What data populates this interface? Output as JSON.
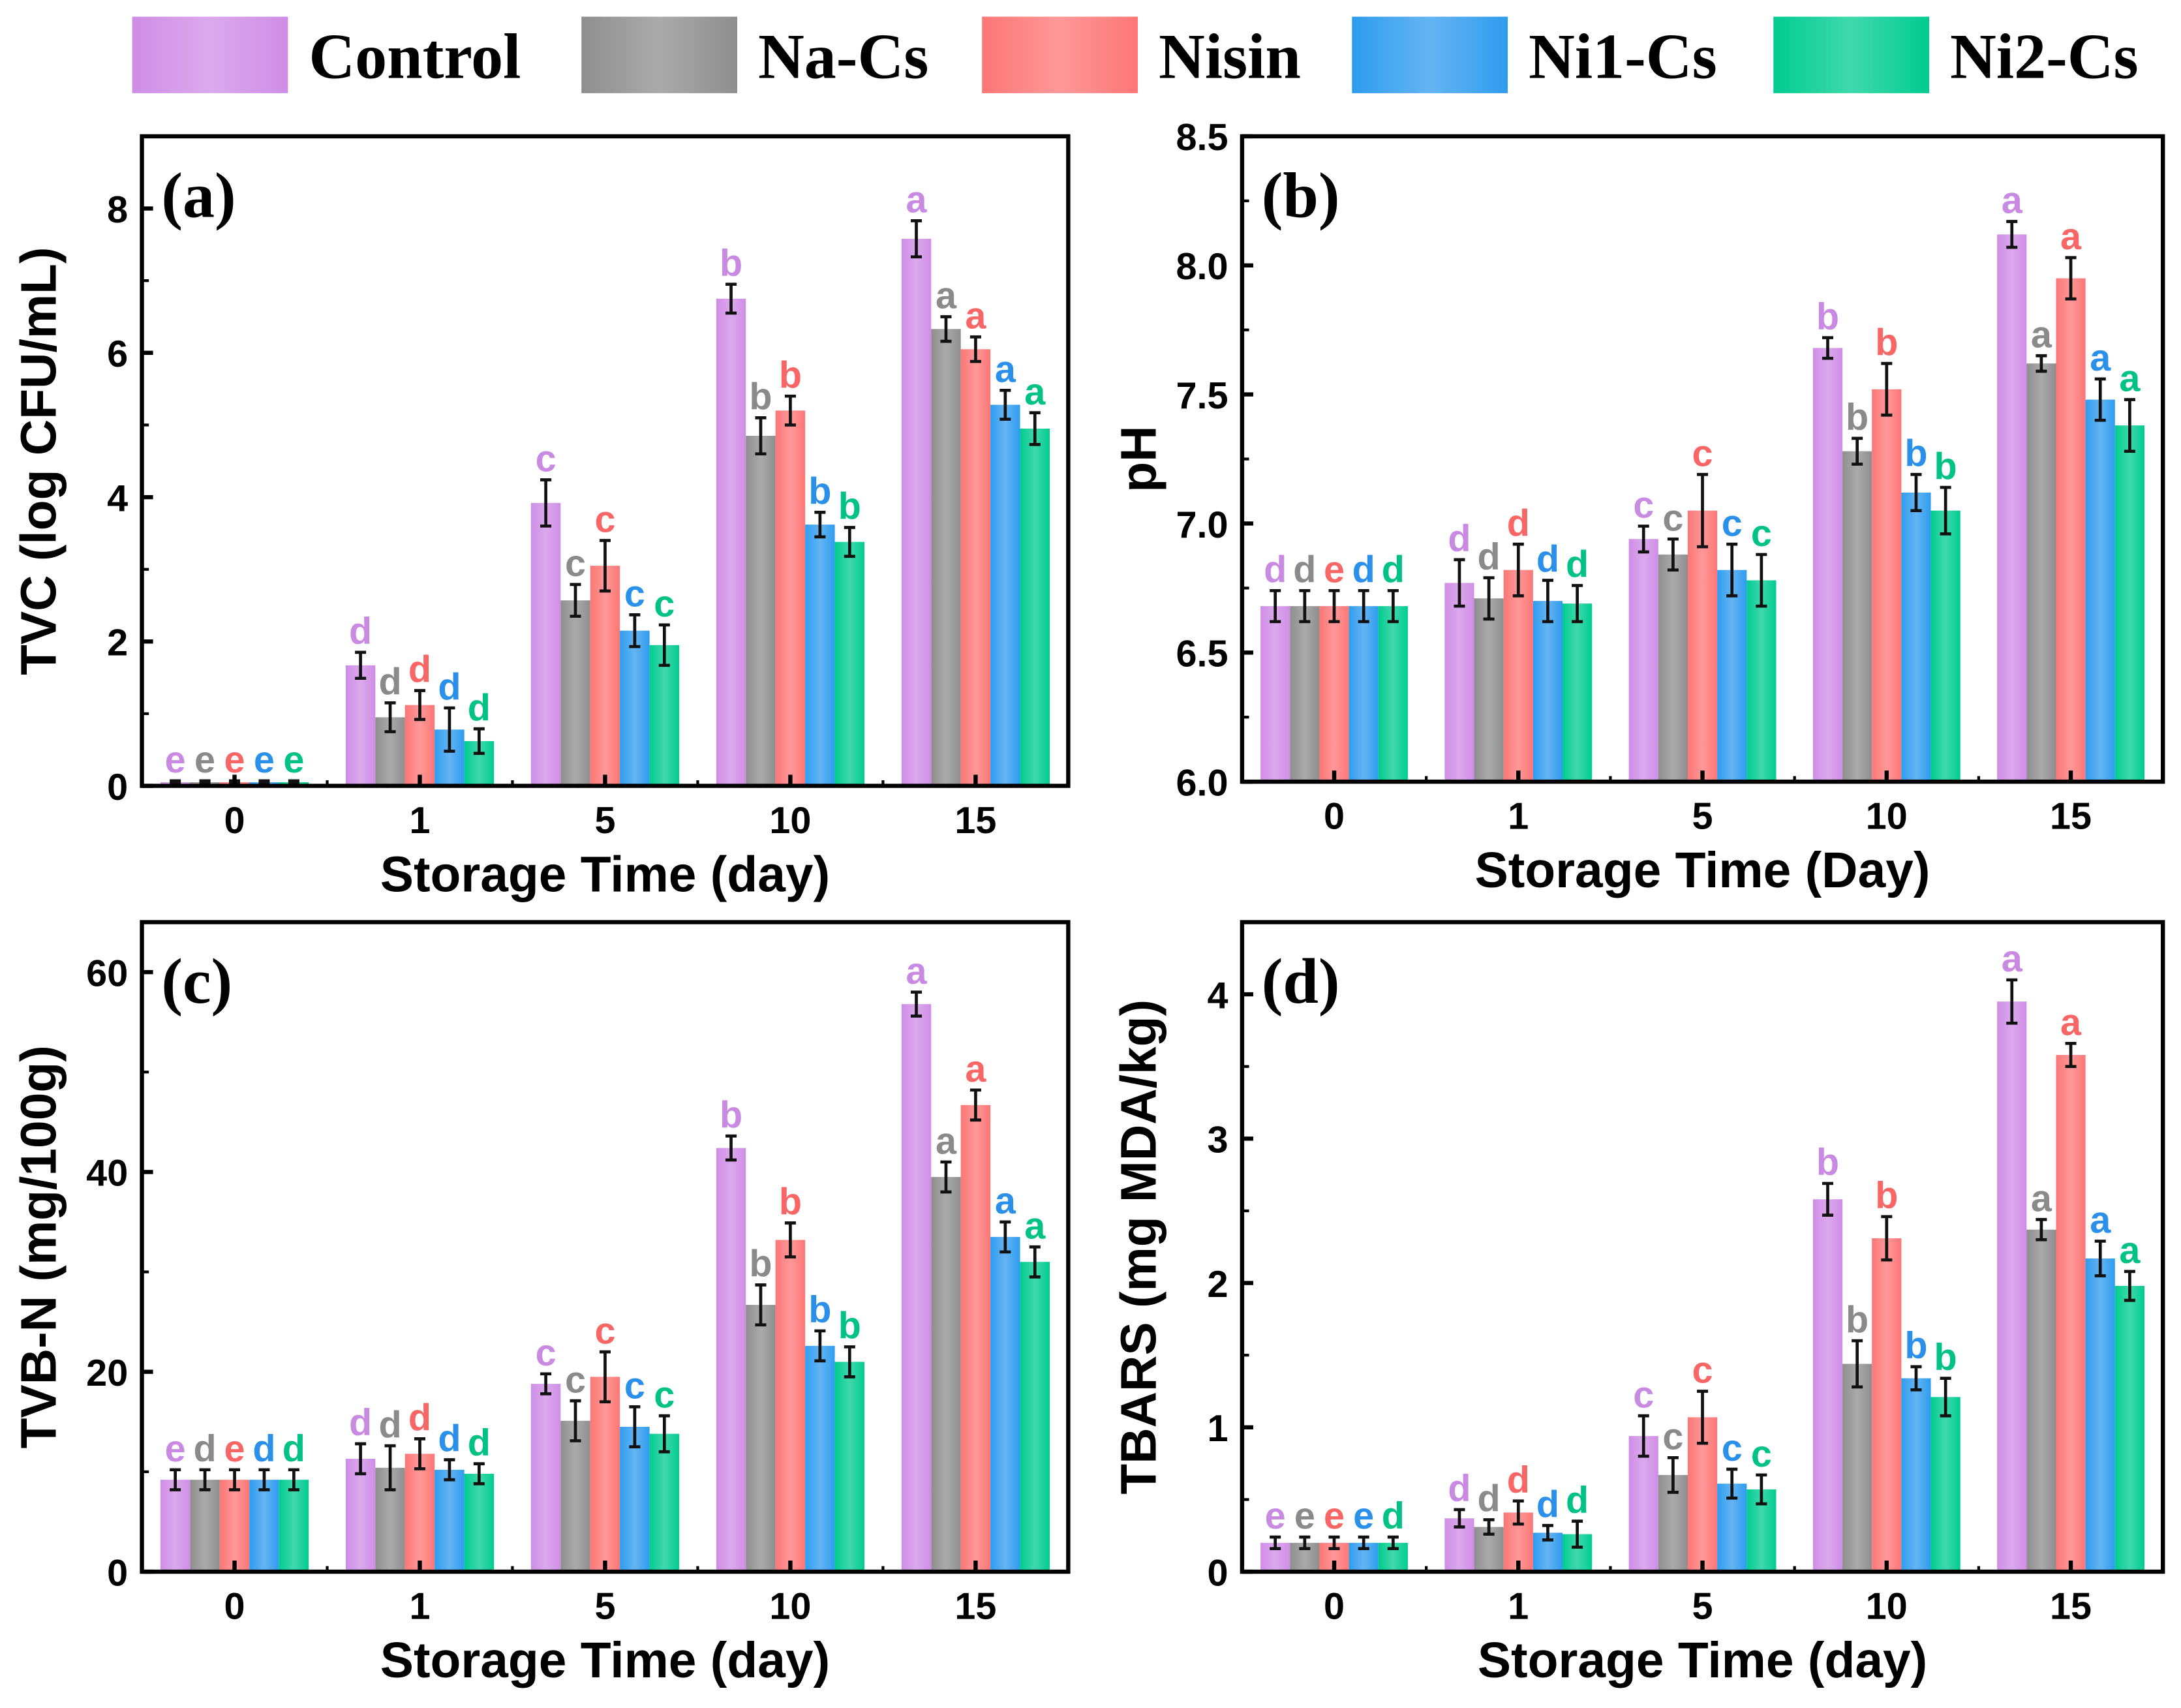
{
  "legend": {
    "position": "top",
    "items": [
      {
        "name": "Control",
        "color": "#cf8de6"
      },
      {
        "name": "Na-Cs",
        "color": "#8e8e8e"
      },
      {
        "name": "Nisin",
        "color": "#fd7676"
      },
      {
        "name": "Ni1-Cs",
        "color": "#2f9cee"
      },
      {
        "name": "Ni2-Cs",
        "color": "#00cc90"
      }
    ]
  },
  "letter_colors": [
    "#c98ae2",
    "#8a8a8a",
    "#f86666",
    "#2a90ea",
    "#00c285"
  ],
  "chart_data": [
    {
      "type": "bar",
      "panel": "(a)",
      "xlabel": "Storage Time (day)",
      "ylabel": "TVC (log CFU/mL)",
      "categories": [
        "0",
        "1",
        "5",
        "10",
        "15"
      ],
      "ylim": [
        0,
        9
      ],
      "yticks": [
        "0",
        "2",
        "4",
        "6",
        "8"
      ],
      "grid": false,
      "series": [
        {
          "name": "Control",
          "values": [
            0.05,
            1.67,
            3.92,
            6.75,
            7.58
          ],
          "errors": [
            0.02,
            0.18,
            0.32,
            0.2,
            0.25
          ],
          "letters": [
            "e",
            "d",
            "c",
            "b",
            "a"
          ]
        },
        {
          "name": "Na-Cs",
          "values": [
            0.05,
            0.95,
            2.57,
            4.85,
            6.33
          ],
          "errors": [
            0.02,
            0.2,
            0.22,
            0.25,
            0.17
          ],
          "letters": [
            "e",
            "d",
            "c",
            "b",
            "a"
          ]
        },
        {
          "name": "Nisin",
          "values": [
            0.05,
            1.12,
            3.05,
            5.2,
            6.05
          ],
          "errors": [
            0.02,
            0.2,
            0.35,
            0.2,
            0.17
          ],
          "letters": [
            "e",
            "d",
            "c",
            "b",
            "a"
          ]
        },
        {
          "name": "Ni1-Cs",
          "values": [
            0.05,
            0.78,
            2.15,
            3.62,
            5.28
          ],
          "errors": [
            0.02,
            0.3,
            0.22,
            0.17,
            0.2
          ],
          "letters": [
            "e",
            "d",
            "c",
            "b",
            "a"
          ]
        },
        {
          "name": "Ni2-Cs",
          "values": [
            0.05,
            0.62,
            1.95,
            3.38,
            4.95
          ],
          "errors": [
            0.02,
            0.17,
            0.28,
            0.2,
            0.22
          ],
          "letters": [
            "e",
            "d",
            "c",
            "b",
            "a"
          ]
        }
      ]
    },
    {
      "type": "bar",
      "panel": "(b)",
      "xlabel": "Storage Time (Day)",
      "ylabel": "pH",
      "categories": [
        "0",
        "1",
        "5",
        "10",
        "15"
      ],
      "ylim": [
        6.0,
        8.5
      ],
      "yticks": [
        "6.0",
        "6.5",
        "7.0",
        "7.5",
        "8.0",
        "8.5"
      ],
      "grid": false,
      "series": [
        {
          "name": "Control",
          "values": [
            6.68,
            6.77,
            6.94,
            7.68,
            8.12
          ],
          "errors": [
            0.06,
            0.09,
            0.05,
            0.04,
            0.05
          ],
          "letters": [
            "d",
            "d",
            "c",
            "b",
            "a"
          ]
        },
        {
          "name": "Na-Cs",
          "values": [
            6.68,
            6.71,
            6.88,
            7.28,
            7.62
          ],
          "errors": [
            0.06,
            0.08,
            0.06,
            0.05,
            0.03
          ],
          "letters": [
            "d",
            "d",
            "c",
            "b",
            "a"
          ]
        },
        {
          "name": "Nisin",
          "values": [
            6.68,
            6.82,
            7.05,
            7.52,
            7.95
          ],
          "errors": [
            0.06,
            0.1,
            0.14,
            0.1,
            0.08
          ],
          "letters": [
            "e",
            "d",
            "c",
            "b",
            "a"
          ]
        },
        {
          "name": "Ni1-Cs",
          "values": [
            6.68,
            6.7,
            6.82,
            7.12,
            7.48
          ],
          "errors": [
            0.06,
            0.08,
            0.1,
            0.07,
            0.08
          ],
          "letters": [
            "d",
            "d",
            "c",
            "b",
            "a"
          ]
        },
        {
          "name": "Ni2-Cs",
          "values": [
            6.68,
            6.69,
            6.78,
            7.05,
            7.38
          ],
          "errors": [
            0.06,
            0.07,
            0.1,
            0.09,
            0.1
          ],
          "letters": [
            "d",
            "d",
            "c",
            "b",
            "a"
          ]
        }
      ]
    },
    {
      "type": "bar",
      "panel": "(c)",
      "xlabel": "Storage Time (day)",
      "ylabel": "TVB-N (mg/100g)",
      "categories": [
        "0",
        "1",
        "5",
        "10",
        "15"
      ],
      "ylim": [
        0,
        65
      ],
      "yticks": [
        "0",
        "20",
        "40",
        "60"
      ],
      "grid": false,
      "series": [
        {
          "name": "Control",
          "values": [
            9.2,
            11.3,
            18.8,
            42.4,
            56.8
          ],
          "errors": [
            1.0,
            1.5,
            1.0,
            1.2,
            1.2
          ],
          "letters": [
            "e",
            "d",
            "c",
            "b",
            "a"
          ]
        },
        {
          "name": "Na-Cs",
          "values": [
            9.2,
            10.4,
            15.1,
            26.7,
            39.5
          ],
          "errors": [
            1.0,
            2.2,
            2.0,
            2.0,
            1.5
          ],
          "letters": [
            "d",
            "d",
            "c",
            "b",
            "a"
          ]
        },
        {
          "name": "Nisin",
          "values": [
            9.2,
            11.8,
            19.5,
            33.2,
            46.7
          ],
          "errors": [
            1.0,
            1.5,
            2.5,
            1.7,
            1.5
          ],
          "letters": [
            "e",
            "d",
            "c",
            "b",
            "a"
          ]
        },
        {
          "name": "Ni1-Cs",
          "values": [
            9.2,
            10.2,
            14.5,
            22.6,
            33.5
          ],
          "errors": [
            1.0,
            1.0,
            2.0,
            1.5,
            1.5
          ],
          "letters": [
            "d",
            "d",
            "c",
            "b",
            "a"
          ]
        },
        {
          "name": "Ni2-Cs",
          "values": [
            9.2,
            9.8,
            13.8,
            21.0,
            31.0
          ],
          "errors": [
            1.0,
            1.0,
            1.8,
            1.5,
            1.5
          ],
          "letters": [
            "d",
            "d",
            "c",
            "b",
            "a"
          ]
        }
      ]
    },
    {
      "type": "bar",
      "panel": "(d)",
      "xlabel": "Storage Time (day)",
      "ylabel": "TBARS (mg MDA/kg)",
      "categories": [
        "0",
        "1",
        "5",
        "10",
        "15"
      ],
      "ylim": [
        0,
        4.5
      ],
      "yticks": [
        "0",
        "1",
        "2",
        "3",
        "4"
      ],
      "grid": false,
      "series": [
        {
          "name": "Control",
          "values": [
            0.2,
            0.37,
            0.94,
            2.58,
            3.95
          ],
          "errors": [
            0.04,
            0.06,
            0.14,
            0.11,
            0.15
          ],
          "letters": [
            "e",
            "d",
            "c",
            "b",
            "a"
          ]
        },
        {
          "name": "Na-Cs",
          "values": [
            0.2,
            0.31,
            0.67,
            1.44,
            2.37
          ],
          "errors": [
            0.04,
            0.05,
            0.12,
            0.16,
            0.07
          ],
          "letters": [
            "e",
            "d",
            "c",
            "b",
            "a"
          ]
        },
        {
          "name": "Nisin",
          "values": [
            0.2,
            0.41,
            1.07,
            2.31,
            3.58
          ],
          "errors": [
            0.04,
            0.08,
            0.18,
            0.15,
            0.08
          ],
          "letters": [
            "e",
            "d",
            "c",
            "b",
            "a"
          ]
        },
        {
          "name": "Ni1-Cs",
          "values": [
            0.2,
            0.27,
            0.61,
            1.34,
            2.17
          ],
          "errors": [
            0.04,
            0.05,
            0.1,
            0.08,
            0.12
          ],
          "letters": [
            "e",
            "d",
            "c",
            "b",
            "a"
          ]
        },
        {
          "name": "Ni2-Cs",
          "values": [
            0.2,
            0.26,
            0.57,
            1.21,
            1.98
          ],
          "errors": [
            0.04,
            0.09,
            0.1,
            0.13,
            0.1
          ],
          "letters": [
            "d",
            "d",
            "c",
            "b",
            "a"
          ]
        }
      ]
    }
  ]
}
